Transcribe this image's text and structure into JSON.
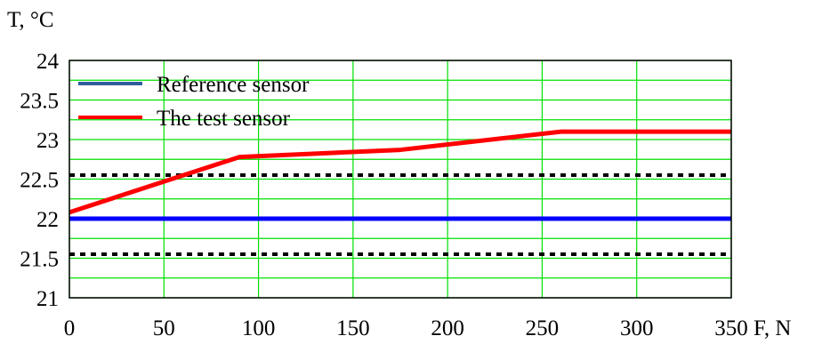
{
  "chart_data": {
    "type": "line",
    "xlabel": "F, N",
    "ylabel": "T, °C",
    "xlim": [
      0,
      350
    ],
    "ylim": [
      21,
      24
    ],
    "x_ticks": [
      "0",
      "50",
      "100",
      "150",
      "200",
      "250",
      "300",
      "350"
    ],
    "y_ticks": [
      "21",
      "21.5",
      "22",
      "22.5",
      "23",
      "23.5",
      "24"
    ],
    "grid": true,
    "grid_color": "#00e000",
    "legend_position": "top-left",
    "series": [
      {
        "name": "Reference sensor",
        "legend_color": "#2f5d9c",
        "color": "#0000ff",
        "x": [
          0,
          350
        ],
        "y": [
          22.0,
          22.0
        ]
      },
      {
        "name": "The test sensor",
        "color": "#ff0000",
        "x": [
          0,
          90,
          175,
          260,
          350
        ],
        "y": [
          22.08,
          22.78,
          22.87,
          23.1,
          23.1
        ]
      }
    ],
    "reference_lines": [
      {
        "y": 22.55,
        "style": "dotted",
        "color": "#000000"
      },
      {
        "y": 21.55,
        "style": "dotted",
        "color": "#000000"
      }
    ]
  }
}
